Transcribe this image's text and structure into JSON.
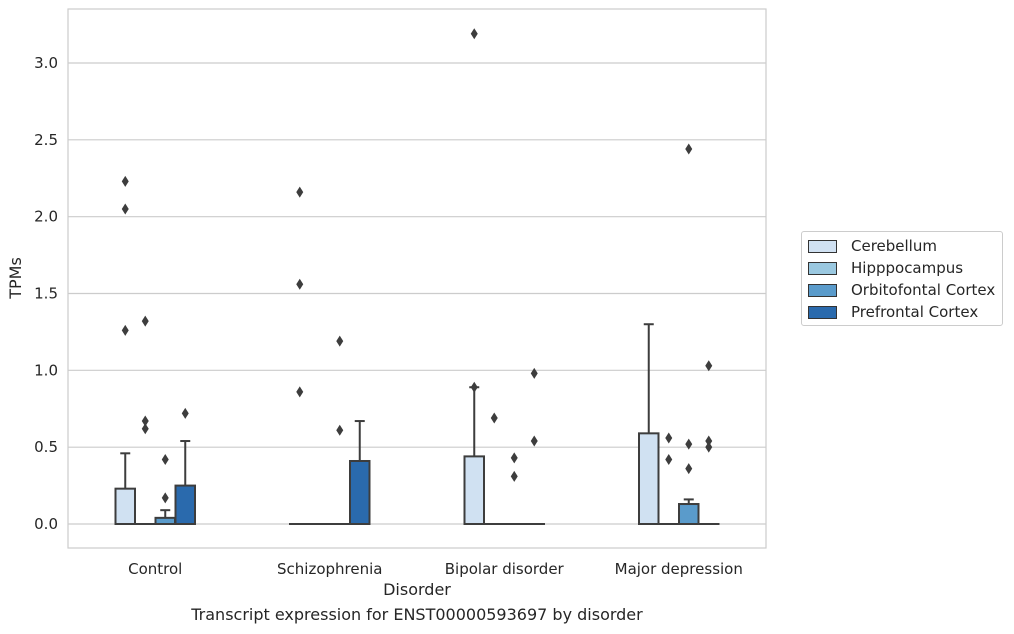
{
  "caption": "Transcript expression for ENST00000593697 by disorder",
  "chart_data": {
    "type": "boxplot",
    "xlabel": "Disorder",
    "ylabel": "TPMs",
    "ylim": [
      -0.15,
      3.38
    ],
    "yticks": [
      "0.0",
      "0.5",
      "1.0",
      "1.5",
      "2.0",
      "2.5",
      "3.0"
    ],
    "categories": [
      "Control",
      "Schizophrenia",
      "Bipolar disorder",
      "Major depression"
    ],
    "grid": "horizontal",
    "legend_position": "right",
    "series": [
      {
        "name": "Cerebellum",
        "color": "#d0e1f2",
        "boxes": [
          {
            "q1": 0.0,
            "median": 0.0,
            "q3": 0.23,
            "whisker_low": 0.0,
            "whisker_high": 0.46,
            "outliers": [
              1.26,
              2.05,
              2.23
            ]
          },
          {
            "q1": 0.0,
            "median": 0.0,
            "q3": 0.0,
            "whisker_low": 0.0,
            "whisker_high": 0.0,
            "outliers": [
              0.86,
              1.56,
              2.16
            ]
          },
          {
            "q1": 0.0,
            "median": 0.0,
            "q3": 0.44,
            "whisker_low": 0.0,
            "whisker_high": 0.89,
            "outliers": [
              0.89,
              3.19
            ]
          },
          {
            "q1": 0.0,
            "median": 0.0,
            "q3": 0.59,
            "whisker_low": 0.0,
            "whisker_high": 1.3,
            "outliers": []
          }
        ]
      },
      {
        "name": "Hipppocampus",
        "color": "#9ac8e0",
        "boxes": [
          {
            "q1": 0.0,
            "median": 0.0,
            "q3": 0.0,
            "whisker_low": 0.0,
            "whisker_high": 0.0,
            "outliers": [
              0.62,
              0.67,
              1.32
            ]
          },
          {
            "q1": 0.0,
            "median": 0.0,
            "q3": 0.0,
            "whisker_low": 0.0,
            "whisker_high": 0.0,
            "outliers": []
          },
          {
            "q1": 0.0,
            "median": 0.0,
            "q3": 0.0,
            "whisker_low": 0.0,
            "whisker_high": 0.0,
            "outliers": [
              0.69
            ]
          },
          {
            "q1": 0.0,
            "median": 0.0,
            "q3": 0.0,
            "whisker_low": 0.0,
            "whisker_high": 0.0,
            "outliers": [
              0.42,
              0.56
            ]
          }
        ]
      },
      {
        "name": "Orbitofontal Cortex",
        "color": "#5a9bcb",
        "boxes": [
          {
            "q1": 0.0,
            "median": 0.0,
            "q3": 0.04,
            "whisker_low": 0.0,
            "whisker_high": 0.09,
            "outliers": [
              0.17,
              0.42
            ]
          },
          {
            "q1": 0.0,
            "median": 0.0,
            "q3": 0.0,
            "whisker_low": 0.0,
            "whisker_high": 0.0,
            "outliers": [
              0.61,
              1.19
            ]
          },
          {
            "q1": 0.0,
            "median": 0.0,
            "q3": 0.0,
            "whisker_low": 0.0,
            "whisker_high": 0.0,
            "outliers": [
              0.31,
              0.43
            ]
          },
          {
            "q1": 0.0,
            "median": 0.0,
            "q3": 0.13,
            "whisker_low": 0.0,
            "whisker_high": 0.16,
            "outliers": [
              0.36,
              0.52,
              2.44
            ]
          }
        ]
      },
      {
        "name": "Prefrontal Cortex",
        "color": "#2a6aad",
        "boxes": [
          {
            "q1": 0.0,
            "median": 0.0,
            "q3": 0.25,
            "whisker_low": 0.0,
            "whisker_high": 0.54,
            "outliers": [
              0.72
            ]
          },
          {
            "q1": 0.0,
            "median": 0.0,
            "q3": 0.41,
            "whisker_low": 0.0,
            "whisker_high": 0.67,
            "outliers": []
          },
          {
            "q1": 0.0,
            "median": 0.0,
            "q3": 0.0,
            "whisker_low": 0.0,
            "whisker_high": 0.0,
            "outliers": [
              0.54,
              0.98
            ]
          },
          {
            "q1": 0.0,
            "median": 0.0,
            "q3": 0.0,
            "whisker_low": 0.0,
            "whisker_high": 0.0,
            "outliers": [
              0.5,
              0.54,
              1.03
            ]
          }
        ]
      }
    ]
  }
}
